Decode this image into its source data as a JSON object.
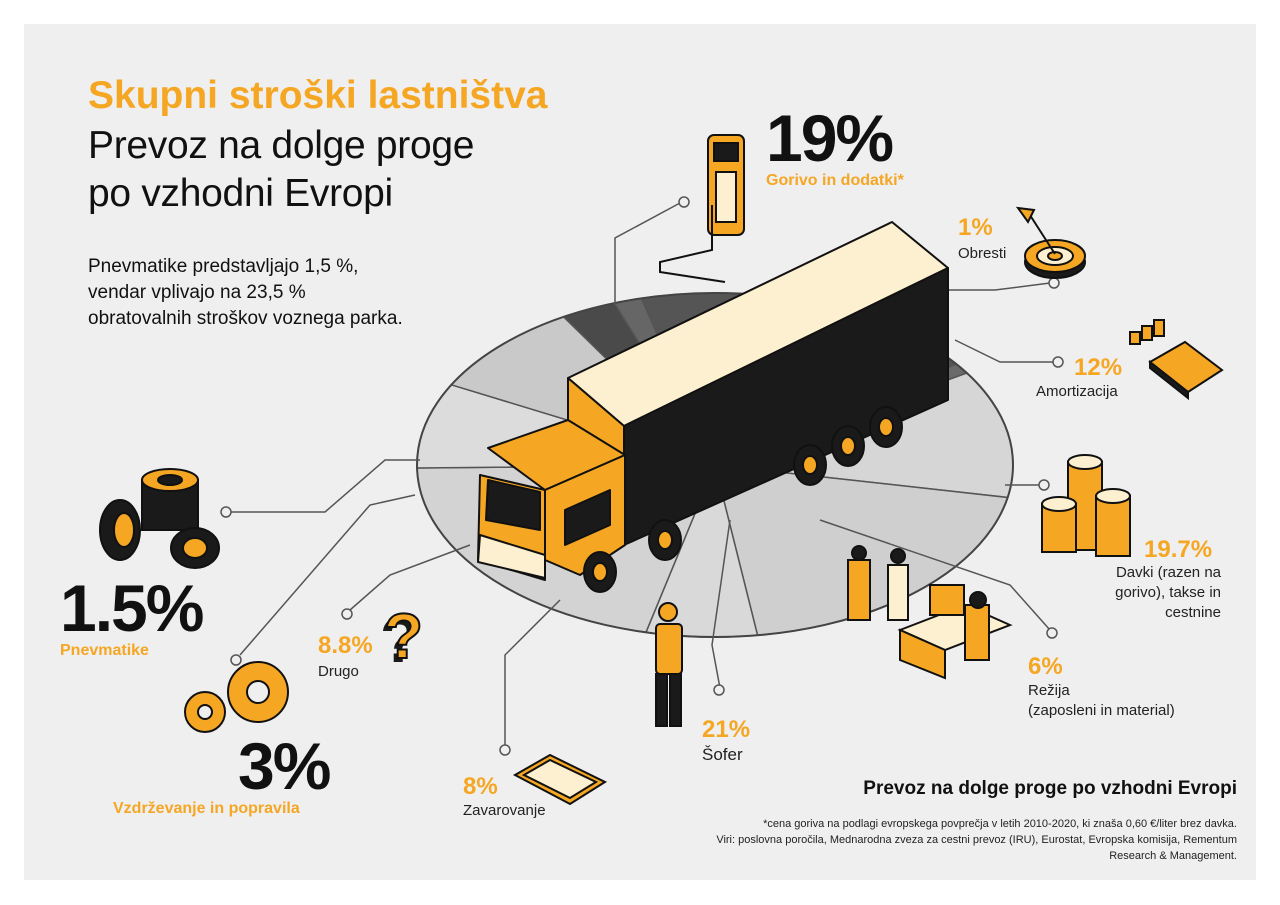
{
  "header": {
    "title": "Skupni stroški lastništva",
    "subtitle_line1": "Prevoz na dolge proge",
    "subtitle_line2": "po vzhodni Evropi"
  },
  "note": {
    "line1": "Pnevmatike predstavljajo 1,5 %,",
    "line2": "vendar vplivajo na 23,5 %",
    "line3": "obratovalnih stroškov voznega parka."
  },
  "chart_data": {
    "type": "pie",
    "title": "Skupni stroški lastništva",
    "slices": [
      {
        "label": "Gorivo in dodatki*",
        "value": 19,
        "display": "19%"
      },
      {
        "label": "Obresti",
        "value": 1,
        "display": "1%"
      },
      {
        "label": "Amortizacija",
        "value": 12,
        "display": "12%"
      },
      {
        "label": "Davki (razen na gorivo), takse in cestnine",
        "value": 19.7,
        "display": "19.7%"
      },
      {
        "label": "Režija (zaposleni in material)",
        "value": 6,
        "display": "6%"
      },
      {
        "label": "Šofer",
        "value": 21,
        "display": "21%"
      },
      {
        "label": "Zavarovanje",
        "value": 8,
        "display": "8%"
      },
      {
        "label": "Drugo",
        "value": 8.8,
        "display": "8.8%"
      },
      {
        "label": "Vzdrževanje in popravila",
        "value": 3,
        "display": "3%"
      },
      {
        "label": "Pnevmatike",
        "value": 1.5,
        "display": "1.5%"
      }
    ]
  },
  "labels": {
    "fuel": {
      "pct": "19%",
      "name": "Gorivo in dodatki*"
    },
    "interest": {
      "pct": "1%",
      "name": "Obresti"
    },
    "depreciation": {
      "pct": "12%",
      "name": "Amortizacija"
    },
    "taxes": {
      "pct": "19.7%",
      "name1": "Davki (razen na",
      "name2": "gorivo), takse in",
      "name3": "cestnine"
    },
    "overhead": {
      "pct": "6%",
      "name1": "Režija",
      "name2": "(zaposleni in material)"
    },
    "driver": {
      "pct": "21%",
      "name": "Šofer"
    },
    "insurance": {
      "pct": "8%",
      "name": "Zavarovanje"
    },
    "other": {
      "pct": "8.8%",
      "name": "Drugo"
    },
    "maintenance": {
      "pct": "3%",
      "name": "Vzdrževanje in popravila"
    },
    "tyres": {
      "pct": "1.5%",
      "name": "Pnevmatike"
    }
  },
  "footer": {
    "heading": "Prevoz na dolge proge po vzhodni Evropi",
    "line1": "*cena goriva na podlagi evropskega povprečja v letih 2010-2020, ki znaša 0,60 €/liter brez davka.",
    "line2": "Viri: poslovna poročila, Mednarodna zveza za cestni prevoz (IRU), Eurostat, Evropska komisija, Rementum",
    "line3": "Research & Management."
  },
  "colors": {
    "accent": "#f5a623",
    "dark": "#111111",
    "pie_dark": "#555555",
    "pie_light": "#d6d6d6",
    "panel": "#efefef",
    "truck_box": "#fdf0d0"
  }
}
